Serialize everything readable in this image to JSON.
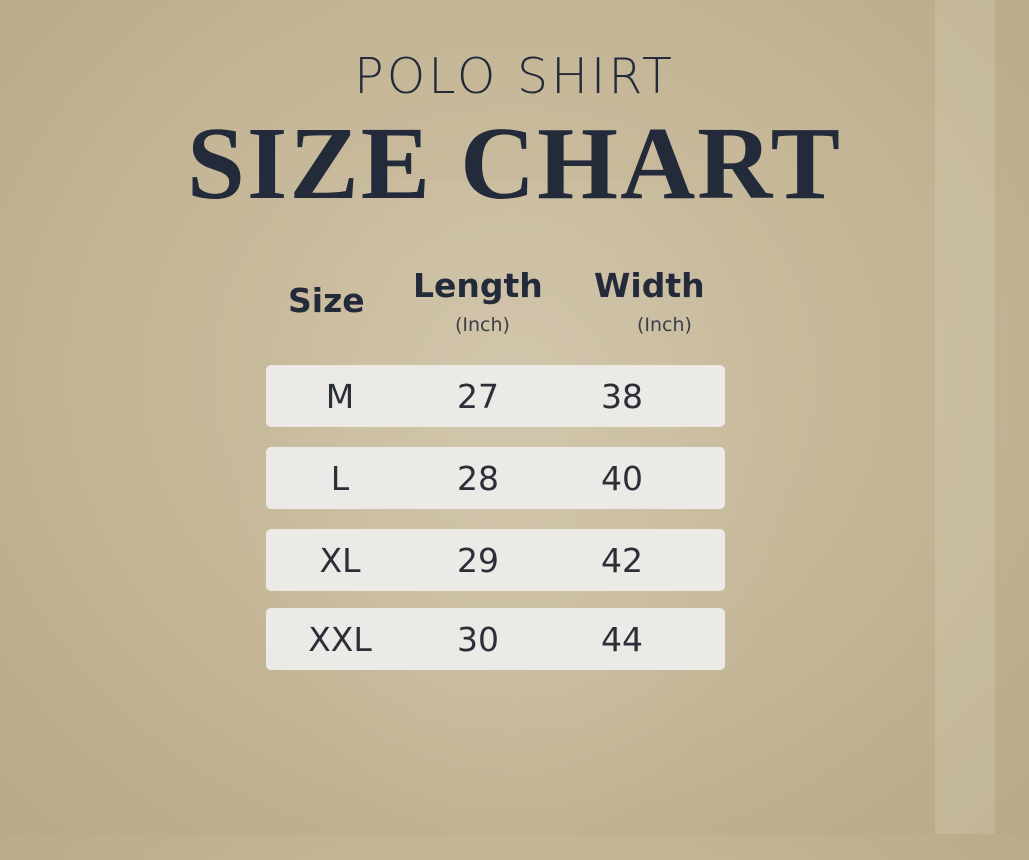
{
  "header": {
    "subtitle": "POLO SHIRT",
    "title": "SIZE CHART"
  },
  "chart_data": {
    "type": "table",
    "title": "SIZE CHART",
    "subtitle": "POLO SHIRT",
    "columns": [
      {
        "label": "Size",
        "unit": ""
      },
      {
        "label": "Length",
        "unit": "(Inch)"
      },
      {
        "label": "Width",
        "unit": "(Inch)"
      }
    ],
    "rows": [
      [
        "M",
        "27",
        "38"
      ],
      [
        "L",
        "28",
        "40"
      ],
      [
        "XL",
        "29",
        "42"
      ],
      [
        "XXL",
        "30",
        "44"
      ]
    ]
  },
  "colors": {
    "text": "#232b3a",
    "row_bg": "#eceae6",
    "background": "#c6b899"
  }
}
